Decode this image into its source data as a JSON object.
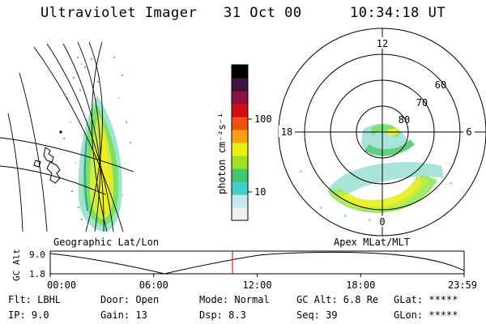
{
  "header": {
    "instrument": "Ultraviolet Imager",
    "date": "31 Oct 00",
    "time": "10:34:18 UT"
  },
  "left_panel": {
    "label": "Geographic Lat/Lon"
  },
  "right_panel": {
    "label": "Apex MLat/MLT",
    "mlt_labels": [
      "12",
      "18",
      "6",
      "0"
    ],
    "lat_labels": [
      "60",
      "70",
      "80"
    ]
  },
  "colorbar": {
    "unit_label": "photon cm⁻²s⁻¹",
    "tick_labels": [
      "100",
      "10"
    ],
    "colors": [
      "#f0f0f0",
      "#c8e8f0",
      "#40d0c8",
      "#40c870",
      "#a0e020",
      "#e8f010",
      "#f8a010",
      "#f05010",
      "#d01010",
      "#901040",
      "#401040",
      "#000000"
    ]
  },
  "timeline": {
    "ylabel": "GC Alt",
    "y_ticks": [
      "9.0",
      "1.8"
    ],
    "x_ticks": [
      "00:00",
      "06:00",
      "12:00",
      "18:00",
      "23:59"
    ],
    "current_time_hours": 10.57,
    "marker_color": "#e02020"
  },
  "info": {
    "flt": "Flt: LBHL",
    "ip": "IP: 9.0",
    "door": "Door: Open",
    "gain": "Gain: 13",
    "mode": "Mode: Normal",
    "dsp": "Dsp:    8.3",
    "gcalt": "GC Alt: 6.8 Re",
    "seq": "Seq: 39",
    "glat": "GLat: *****",
    "glon": "GLon: *****"
  }
}
